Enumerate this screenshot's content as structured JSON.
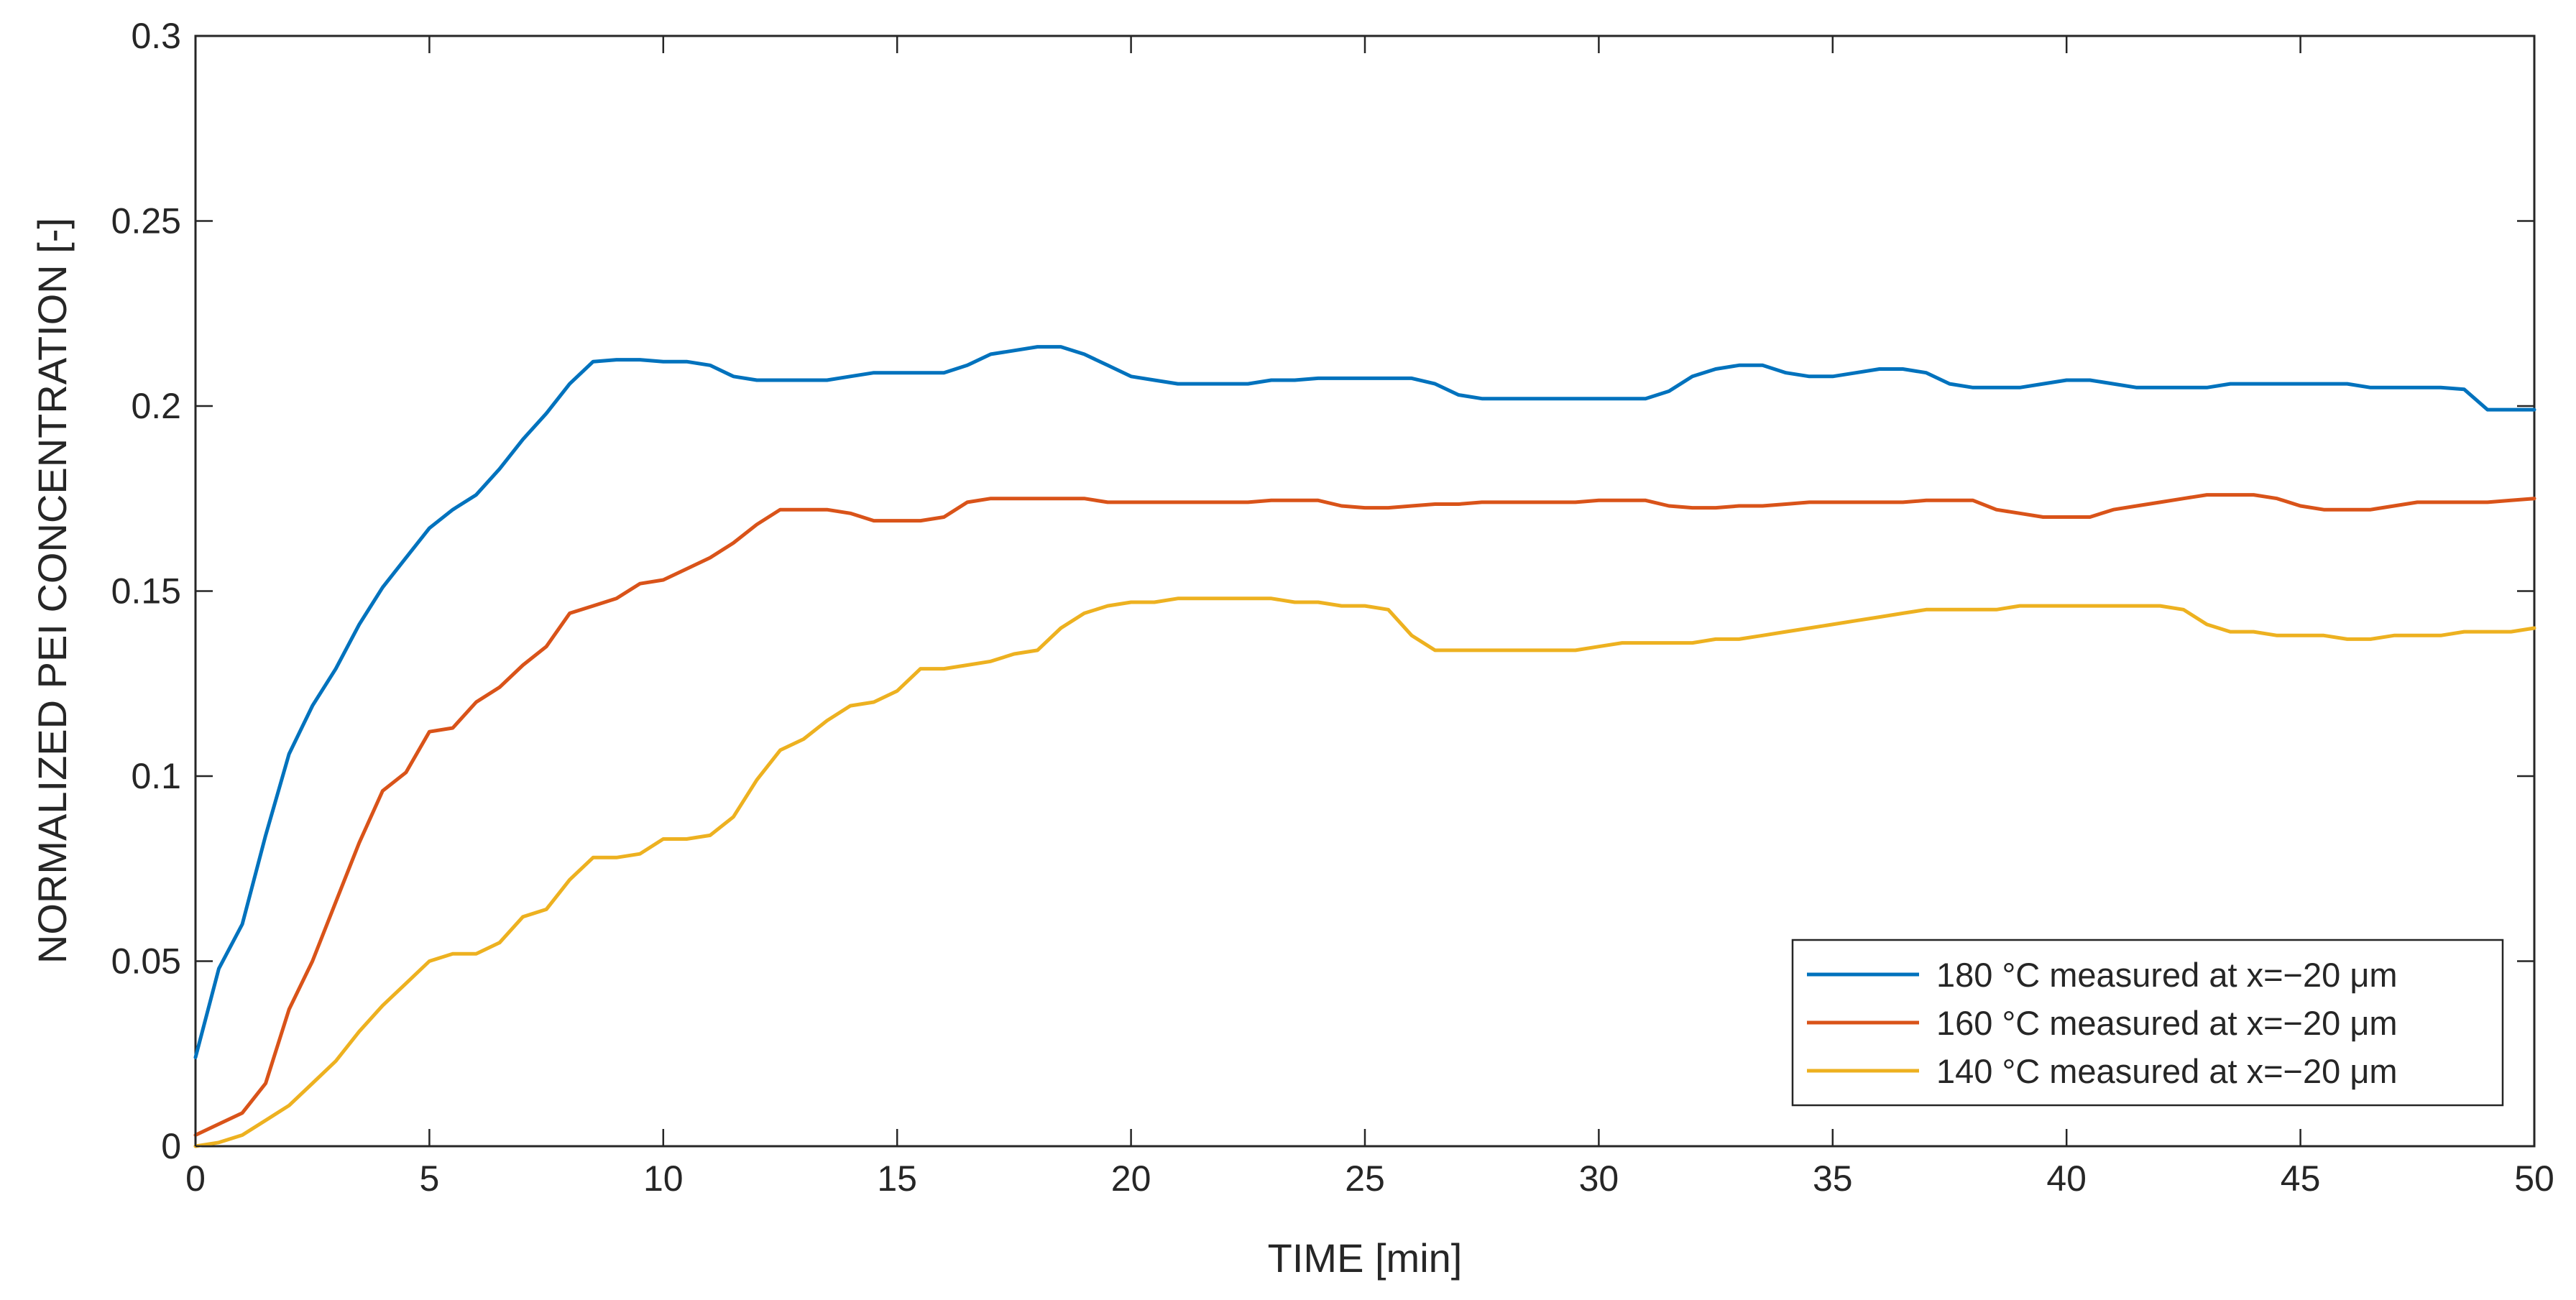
{
  "chart_data": {
    "type": "line",
    "title": "",
    "xlabel": "TIME [min]",
    "ylabel": "NORMALIZED PEI CONCENTRATION [-]",
    "xlim": [
      0,
      50
    ],
    "ylim": [
      0,
      0.3
    ],
    "xticks": [
      0,
      5,
      10,
      15,
      20,
      25,
      30,
      35,
      40,
      45,
      50
    ],
    "xtick_labels": [
      "0",
      "5",
      "10",
      "15",
      "20",
      "25",
      "30",
      "35",
      "40",
      "45",
      "50"
    ],
    "yticks": [
      0,
      0.05,
      0.1,
      0.15,
      0.2,
      0.25,
      0.3
    ],
    "ytick_labels": [
      "0",
      "0.05",
      "0.1",
      "0.15",
      "0.2",
      "0.25",
      "0.3"
    ],
    "grid": false,
    "legend_position": "bottom-right",
    "series": [
      {
        "name": "180 °C measured at x=−20 μm",
        "color": "#0072BD",
        "x": [
          0,
          0.5,
          1,
          1.5,
          2,
          2.5,
          3,
          3.5,
          4,
          4.5,
          5,
          5.5,
          6,
          6.5,
          7,
          7.5,
          8,
          8.5,
          9,
          9.5,
          10,
          10.5,
          11,
          11.5,
          12,
          12.5,
          13,
          13.5,
          14,
          14.5,
          15,
          15.5,
          16,
          16.5,
          17,
          17.5,
          18,
          18.5,
          19,
          19.5,
          20,
          20.5,
          21,
          21.5,
          22,
          22.5,
          23,
          23.5,
          24,
          24.5,
          25,
          25.5,
          26,
          26.5,
          27,
          27.5,
          28,
          28.5,
          29,
          29.5,
          30,
          30.5,
          31,
          31.5,
          32,
          32.5,
          33,
          33.5,
          34,
          34.5,
          35,
          35.5,
          36,
          36.5,
          37,
          37.5,
          38,
          38.5,
          39,
          39.5,
          40,
          40.5,
          41,
          41.5,
          42,
          42.5,
          43,
          43.5,
          44,
          44.5,
          45,
          45.5,
          46,
          46.5,
          47,
          47.5,
          48,
          48.5,
          49,
          49.5,
          50
        ],
        "y": [
          0.024,
          0.048,
          0.06,
          0.084,
          0.106,
          0.119,
          0.129,
          0.141,
          0.151,
          0.159,
          0.167,
          0.172,
          0.176,
          0.183,
          0.191,
          0.198,
          0.206,
          0.212,
          0.2125,
          0.2125,
          0.212,
          0.212,
          0.211,
          0.208,
          0.207,
          0.207,
          0.207,
          0.207,
          0.208,
          0.209,
          0.209,
          0.209,
          0.209,
          0.211,
          0.214,
          0.215,
          0.216,
          0.216,
          0.214,
          0.211,
          0.208,
          0.207,
          0.206,
          0.206,
          0.206,
          0.206,
          0.207,
          0.207,
          0.2075,
          0.2075,
          0.2075,
          0.2075,
          0.2075,
          0.206,
          0.203,
          0.202,
          0.202,
          0.202,
          0.202,
          0.202,
          0.202,
          0.202,
          0.202,
          0.204,
          0.208,
          0.21,
          0.211,
          0.211,
          0.209,
          0.208,
          0.208,
          0.209,
          0.21,
          0.21,
          0.209,
          0.206,
          0.205,
          0.205,
          0.205,
          0.206,
          0.207,
          0.207,
          0.206,
          0.205,
          0.205,
          0.205,
          0.205,
          0.206,
          0.206,
          0.206,
          0.206,
          0.206,
          0.206,
          0.205,
          0.205,
          0.205,
          0.205,
          0.2045,
          0.199,
          0.199,
          0.199
        ]
      },
      {
        "name": "160 °C measured at x=−20 μm",
        "color": "#D95319",
        "x": [
          0,
          0.5,
          1,
          1.5,
          2,
          2.5,
          3,
          3.5,
          4,
          4.5,
          5,
          5.5,
          6,
          6.5,
          7,
          7.5,
          8,
          8.5,
          9,
          9.5,
          10,
          10.5,
          11,
          11.5,
          12,
          12.5,
          13,
          13.5,
          14,
          14.5,
          15,
          15.5,
          16,
          16.5,
          17,
          17.5,
          18,
          18.5,
          19,
          19.5,
          20,
          20.5,
          21,
          21.5,
          22,
          22.5,
          23,
          23.5,
          24,
          24.5,
          25,
          25.5,
          26,
          26.5,
          27,
          27.5,
          28,
          28.5,
          29,
          29.5,
          30,
          30.5,
          31,
          31.5,
          32,
          32.5,
          33,
          33.5,
          34,
          34.5,
          35,
          35.5,
          36,
          36.5,
          37,
          37.5,
          38,
          38.5,
          39,
          39.5,
          40,
          40.5,
          41,
          41.5,
          42,
          42.5,
          43,
          43.5,
          44,
          44.5,
          45,
          45.5,
          46,
          46.5,
          47,
          47.5,
          48,
          48.5,
          49,
          49.5,
          50
        ],
        "y": [
          0.003,
          0.006,
          0.009,
          0.017,
          0.037,
          0.05,
          0.066,
          0.082,
          0.096,
          0.101,
          0.112,
          0.113,
          0.12,
          0.124,
          0.13,
          0.135,
          0.144,
          0.146,
          0.148,
          0.152,
          0.153,
          0.156,
          0.159,
          0.163,
          0.168,
          0.172,
          0.172,
          0.172,
          0.171,
          0.169,
          0.169,
          0.169,
          0.17,
          0.174,
          0.175,
          0.175,
          0.175,
          0.175,
          0.175,
          0.174,
          0.174,
          0.174,
          0.174,
          0.174,
          0.174,
          0.174,
          0.1745,
          0.1745,
          0.1745,
          0.173,
          0.1725,
          0.1725,
          0.173,
          0.1735,
          0.1735,
          0.174,
          0.174,
          0.174,
          0.174,
          0.174,
          0.1745,
          0.1745,
          0.1745,
          0.173,
          0.1725,
          0.1725,
          0.173,
          0.173,
          0.1735,
          0.174,
          0.174,
          0.174,
          0.174,
          0.174,
          0.1745,
          0.1745,
          0.1745,
          0.172,
          0.171,
          0.17,
          0.17,
          0.17,
          0.172,
          0.173,
          0.174,
          0.175,
          0.176,
          0.176,
          0.176,
          0.175,
          0.173,
          0.172,
          0.172,
          0.172,
          0.173,
          0.174,
          0.174,
          0.174,
          0.174,
          0.1745,
          0.175
        ]
      },
      {
        "name": "140 °C measured at x=−20 μm",
        "color": "#EDB120",
        "x": [
          0,
          0.5,
          1,
          1.5,
          2,
          2.5,
          3,
          3.5,
          4,
          4.5,
          5,
          5.5,
          6,
          6.5,
          7,
          7.5,
          8,
          8.5,
          9,
          9.5,
          10,
          10.5,
          11,
          11.5,
          12,
          12.5,
          13,
          13.5,
          14,
          14.5,
          15,
          15.5,
          16,
          16.5,
          17,
          17.5,
          18,
          18.5,
          19,
          19.5,
          20,
          20.5,
          21,
          21.5,
          22,
          22.5,
          23,
          23.5,
          24,
          24.5,
          25,
          25.5,
          26,
          26.5,
          27,
          27.5,
          28,
          28.5,
          29,
          29.5,
          30,
          30.5,
          31,
          31.5,
          32,
          32.5,
          33,
          33.5,
          34,
          34.5,
          35,
          35.5,
          36,
          36.5,
          37,
          37.5,
          38,
          38.5,
          39,
          39.5,
          40,
          40.5,
          41,
          41.5,
          42,
          42.5,
          43,
          43.5,
          44,
          44.5,
          45,
          45.5,
          46,
          46.5,
          47,
          47.5,
          48,
          48.5,
          49,
          49.5,
          50
        ],
        "y": [
          0,
          0.001,
          0.003,
          0.007,
          0.011,
          0.017,
          0.023,
          0.031,
          0.038,
          0.044,
          0.05,
          0.052,
          0.052,
          0.055,
          0.062,
          0.064,
          0.072,
          0.078,
          0.078,
          0.079,
          0.083,
          0.083,
          0.084,
          0.089,
          0.099,
          0.107,
          0.11,
          0.115,
          0.119,
          0.12,
          0.123,
          0.129,
          0.129,
          0.13,
          0.131,
          0.133,
          0.134,
          0.14,
          0.144,
          0.146,
          0.147,
          0.147,
          0.148,
          0.148,
          0.148,
          0.148,
          0.148,
          0.147,
          0.147,
          0.146,
          0.146,
          0.145,
          0.138,
          0.134,
          0.134,
          0.134,
          0.134,
          0.134,
          0.134,
          0.134,
          0.135,
          0.136,
          0.136,
          0.136,
          0.136,
          0.137,
          0.137,
          0.138,
          0.139,
          0.14,
          0.141,
          0.142,
          0.143,
          0.144,
          0.145,
          0.145,
          0.145,
          0.145,
          0.146,
          0.146,
          0.146,
          0.146,
          0.146,
          0.146,
          0.146,
          0.145,
          0.141,
          0.139,
          0.139,
          0.138,
          0.138,
          0.138,
          0.137,
          0.137,
          0.138,
          0.138,
          0.138,
          0.139,
          0.139,
          0.139,
          0.14
        ]
      }
    ]
  }
}
